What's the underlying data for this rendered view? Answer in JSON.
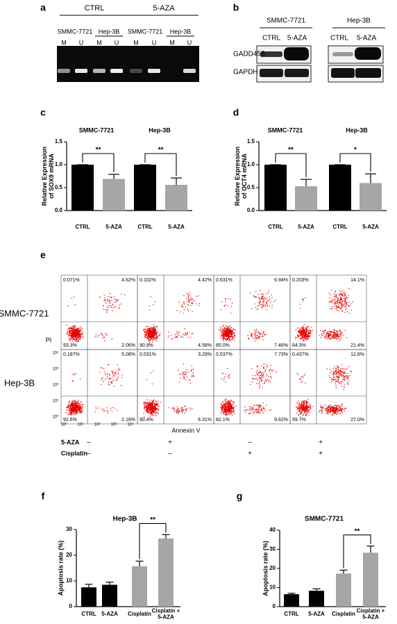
{
  "panel_labels": [
    "a",
    "b",
    "c",
    "d",
    "e",
    "f",
    "g"
  ],
  "gel": {
    "groups": [
      "CTRL",
      "5-AZA"
    ],
    "cell_lines": [
      "SMMC-7721",
      "Hep-3B",
      "SMMC-7721",
      "Hep-3B"
    ],
    "lanes": [
      "M",
      "U",
      "M",
      "U",
      "M",
      "U",
      "M",
      "U"
    ]
  },
  "blot": {
    "cell_lines": [
      "SMMC-7721",
      "Hep-3B"
    ],
    "conditions": [
      "CTRL",
      "5-AZA",
      "CTRL",
      "5-AZA"
    ],
    "proteins": [
      "GADD45β",
      "GAPDH"
    ]
  },
  "flow": {
    "rows": [
      "SMMC-7721",
      "Hep-3B"
    ],
    "y_label": "PI",
    "x_label": "Annexin V",
    "ticks": [
      "10⁰",
      "10¹",
      "10²",
      "10³",
      "10⁴"
    ],
    "quadrants": [
      [
        [
          "0.071%",
          "4.62%",
          "93.3%",
          "2.06%"
        ],
        [
          "0.102%",
          "4.42%",
          "90.9%",
          "4.58%"
        ],
        [
          "0.631%",
          "6.94%",
          "85.0%",
          "7.46%"
        ],
        [
          "0.203%",
          "14.1%",
          "64.3%",
          "21.4%"
        ]
      ],
      [
        [
          "0.187%",
          "5.08%",
          "92.6%",
          "2.16%"
        ],
        [
          "0.031%",
          "3.29%",
          "90.4%",
          "6.31%"
        ],
        [
          "0.537%",
          "7.73%",
          "82.1%",
          "9.62%"
        ],
        [
          "0.437%",
          "12.8%",
          "59.7%",
          "27.0%"
        ]
      ]
    ],
    "treatments": [
      {
        "name": "5-AZA",
        "marks": [
          "–",
          "+",
          "–",
          "+"
        ]
      },
      {
        "name": "Cisplatin",
        "marks": [
          "–",
          "–",
          "+",
          "+"
        ]
      }
    ]
  },
  "chart_data": [
    {
      "type": "bar",
      "groups": [
        "SMMC-7721",
        "Hep-3B"
      ],
      "y_label": "Relative Expression\nof SOX9 mRNA",
      "categories": [
        "CTRL",
        "5-AZA",
        "CTRL",
        "5-AZA"
      ],
      "series": [
        {
          "values": [
            1,
            0.69,
            1,
            0.56
          ],
          "errors": [
            0,
            0.1,
            0,
            0.15
          ],
          "colors": [
            "#000000",
            "#a6a6a6",
            "#000000",
            "#a6a6a6"
          ]
        }
      ],
      "ylim": [
        0,
        1.5
      ],
      "yticks": [
        {
          "value": 0,
          "label": "0.0"
        },
        0.5,
        {
          "value": 1,
          "label": "1.0"
        },
        1.5
      ],
      "annotations": [
        "**",
        "**"
      ]
    },
    {
      "type": "bar",
      "groups": [
        "SMMC-7721",
        "Hep-3B"
      ],
      "y_label": "Relative Expression\nof OCT4 mRNA",
      "categories": [
        "CTRL",
        "5-AZA",
        "CTRL",
        "5-AZA"
      ],
      "series": [
        {
          "values": [
            1,
            0.53,
            1,
            0.6
          ],
          "errors": [
            0,
            0.15,
            0,
            0.2
          ],
          "colors": [
            "#000000",
            "#a6a6a6",
            "#000000",
            "#a6a6a6"
          ]
        }
      ],
      "ylim": [
        0,
        1.5
      ],
      "yticks": [
        {
          "value": 0,
          "label": "0.0"
        },
        0.5,
        {
          "value": 1,
          "label": "1.0"
        },
        1.5
      ],
      "annotations": [
        "**",
        "*"
      ]
    },
    {
      "type": "bar",
      "title": "Hep-3B",
      "y_label": "Apoptosis rate (%)",
      "categories": [
        "CTRL",
        "5-AZA",
        "Cisplatin",
        "Cisplatin +\n5-AZA"
      ],
      "series": [
        {
          "values": [
            7.5,
            8.5,
            15.7,
            26.5
          ],
          "errors": [
            1.2,
            1,
            2,
            1.5
          ],
          "colors": [
            "#000000",
            "#000000",
            "#a6a6a6",
            "#a6a6a6"
          ]
        }
      ],
      "ylim": [
        0,
        30
      ],
      "yticks": [
        0,
        10,
        20,
        30
      ],
      "annotations": [
        "**"
      ]
    },
    {
      "type": "bar",
      "title": "SMMC-7721",
      "y_label": "Apoptosis rate (%)",
      "categories": [
        "CTRL",
        "5-AZA",
        "Cisplatin",
        "Cisplatin +\n5-AZA"
      ],
      "series": [
        {
          "values": [
            6.5,
            8.3,
            17.3,
            28.2
          ],
          "errors": [
            0.5,
            1,
            1.8,
            3.5
          ],
          "colors": [
            "#000000",
            "#000000",
            "#a6a6a6",
            "#a6a6a6"
          ]
        }
      ],
      "ylim": [
        0,
        40
      ],
      "yticks": [
        0,
        10,
        20,
        30,
        40
      ],
      "annotations": [
        "**"
      ]
    }
  ]
}
